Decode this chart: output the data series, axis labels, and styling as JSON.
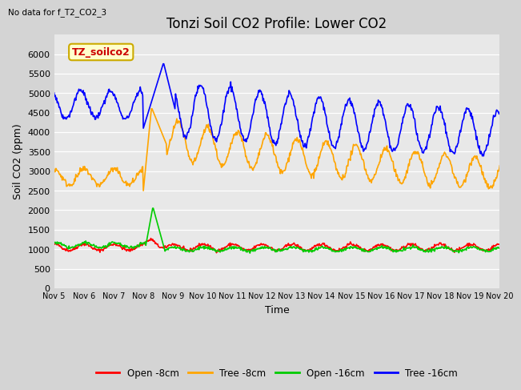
{
  "title": "Tonzi Soil CO2 Profile: Lower CO2",
  "subtitle": "No data for f_T2_CO2_3",
  "xlabel": "Time",
  "ylabel": "Soil CO2 (ppm)",
  "ylim": [
    0,
    6500
  ],
  "yticks": [
    0,
    500,
    1000,
    1500,
    2000,
    2500,
    3000,
    3500,
    4000,
    4500,
    5000,
    5500,
    6000
  ],
  "xtick_labels": [
    "Nov 5",
    "Nov 6",
    "Nov 7",
    "Nov 8",
    "Nov 9",
    "Nov 10",
    "Nov 11",
    "Nov 12",
    "Nov 13",
    "Nov 14",
    "Nov 15",
    "Nov 16",
    "Nov 17",
    "Nov 18",
    "Nov 19",
    "Nov 20"
  ],
  "legend_entries": [
    "Open -8cm",
    "Tree -8cm",
    "Open -16cm",
    "Tree -16cm"
  ],
  "legend_colors": [
    "#ff0000",
    "#ffa500",
    "#00cc00",
    "#0000ff"
  ],
  "annotation_box_text": "TZ_soilco2",
  "annotation_box_color": "#ffffcc",
  "annotation_box_border": "#ccaa00",
  "annotation_text_color": "#cc0000",
  "fig_bg_color": "#d4d4d4",
  "plot_bg_color": "#e8e8e8",
  "title_fontsize": 12,
  "axis_label_fontsize": 9,
  "tick_fontsize": 8,
  "grid_color": "#ffffff",
  "line_width": 1.2
}
